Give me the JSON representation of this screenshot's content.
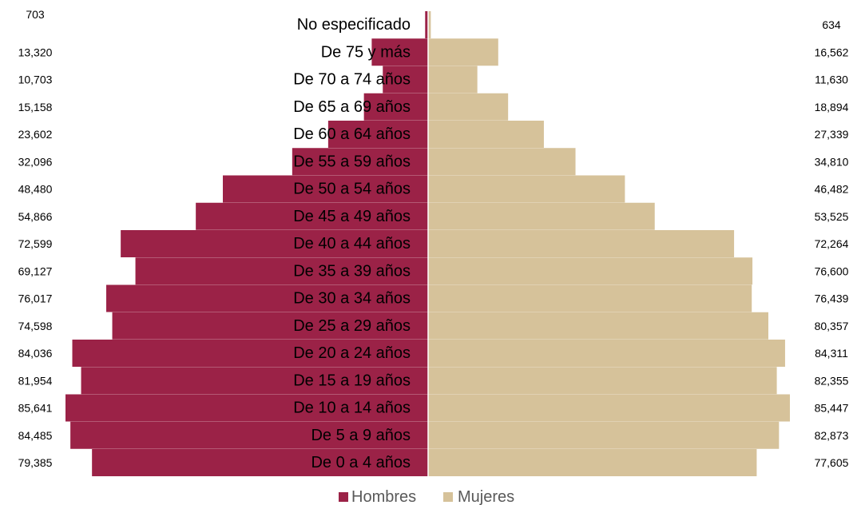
{
  "chart_data": {
    "type": "bar",
    "orientation": "horizontal-population-pyramid",
    "title": "",
    "xlabel": "",
    "ylabel": "",
    "categories": [
      "No especificado",
      "De 75 y más",
      "De 70 a 74 años",
      "De 65 a 69 años",
      "De 60 a 64 años",
      "De 55 a 59 años",
      "De 50 a 54 años",
      "De 45 a 49 años",
      "De 40 a 44 años",
      "De 35 a 39 años",
      "De 30 a 34 años",
      "De 25 a 29 años",
      "De 20 a 24 años",
      "De 15 a 19 años",
      "De 10 a 14 años",
      "De 5 a 9 años",
      "De 0 a 4 años"
    ],
    "series": [
      {
        "name": "Hombres",
        "color": "#9B2247",
        "side": "left",
        "values": [
          703,
          13320,
          10703,
          15158,
          23602,
          32096,
          48480,
          54866,
          72599,
          69127,
          76017,
          74598,
          84036,
          81954,
          85641,
          84485,
          79385
        ],
        "labels": [
          "703",
          "13,320",
          "10,703",
          "15,158",
          "23,602",
          "32,096",
          "48,480",
          "54,866",
          "72,599",
          "69,127",
          "76,017",
          "74,598",
          "84,036",
          "81,954",
          "85,641",
          "84,485",
          "79,385"
        ]
      },
      {
        "name": "Mujeres",
        "color": "#D6C29A",
        "side": "right",
        "values": [
          634,
          16562,
          11630,
          18894,
          27339,
          34810,
          46482,
          53525,
          72264,
          76600,
          76439,
          80357,
          84311,
          82355,
          85447,
          82873,
          77605
        ],
        "labels": [
          "634",
          "16,562",
          "11,630",
          "18,894",
          "27,339",
          "34,810",
          "46,482",
          "53,525",
          "72,264",
          "76,600",
          "76,439",
          "80,357",
          "84,311",
          "82,355",
          "85,447",
          "82,873",
          "77,605"
        ]
      }
    ],
    "legend": "bottom-center",
    "grid": false
  }
}
